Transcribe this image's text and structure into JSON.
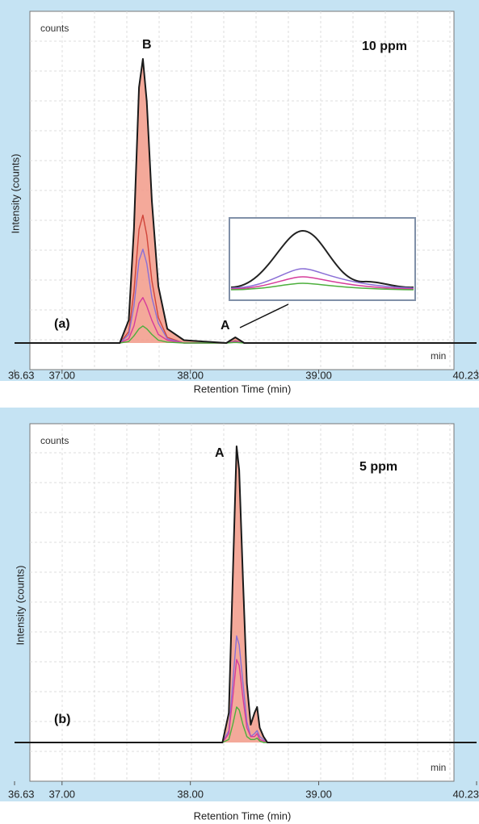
{
  "chart_data": [
    {
      "type": "line",
      "concentration": "10 ppm",
      "panel_label": "(a)",
      "y_unit": "counts",
      "x_unit": "min",
      "peak_labels": [
        "B",
        "A"
      ],
      "x_label": "Retention Time (min)",
      "y_label": "Intensity (counts)",
      "grid": true,
      "fill_color": "#f29a88",
      "xlim": [
        36.63,
        40.23
      ],
      "xticks": [
        36.63,
        {
          "value": 37,
          "label": "37.00"
        },
        {
          "value": 38,
          "label": "38.00"
        },
        {
          "value": 39,
          "label": "39.00"
        },
        40.23
      ],
      "ylim": [
        0,
        100
      ],
      "x": [
        36.63,
        37.45,
        37.52,
        37.56,
        37.6,
        37.63,
        37.66,
        37.7,
        37.75,
        37.82,
        37.95,
        38.28,
        38.35,
        38.42,
        40.23
      ],
      "series": [
        {
          "color": "#d0443a",
          "values": [
            0,
            0,
            4,
            18,
            40,
            45,
            38,
            22,
            9,
            2,
            0,
            0,
            0.8,
            0,
            0
          ]
        },
        {
          "color": "#8a6fd6",
          "values": [
            0,
            0,
            3,
            13,
            29,
            33,
            28,
            16,
            7,
            1.5,
            0,
            0,
            0.6,
            0,
            0
          ]
        },
        {
          "color": "#d63c9a",
          "values": [
            0,
            0,
            1.5,
            6,
            14,
            16,
            13,
            8,
            3,
            1,
            0,
            0,
            0.4,
            0,
            0
          ]
        },
        {
          "color": "#4caf3c",
          "values": [
            0,
            0,
            0.5,
            2.5,
            5,
            6,
            5,
            3,
            1,
            0.3,
            0,
            0,
            0.2,
            0,
            0
          ]
        },
        {
          "color": "#1a1a1a",
          "values": [
            0,
            0,
            8,
            40,
            90,
            100,
            85,
            50,
            20,
            5,
            1,
            0,
            2,
            0,
            0
          ]
        }
      ]
    },
    {
      "type": "line",
      "concentration": "5 ppm",
      "panel_label": "(b)",
      "y_unit": "counts",
      "x_unit": "min",
      "peak_labels": [
        "A"
      ],
      "x_label": "Retention Time (min)",
      "y_label": "Intensity (counts)",
      "grid": true,
      "fill_color": "#f29a88",
      "xlim": [
        36.63,
        40.23
      ],
      "xticks": [
        36.63,
        {
          "value": 37,
          "label": "37.00"
        },
        {
          "value": 38,
          "label": "38.00"
        },
        {
          "value": 39,
          "label": "39.00"
        },
        40.23
      ],
      "ylim": [
        0,
        100
      ],
      "x": [
        36.63,
        38.25,
        38.3,
        38.33,
        38.36,
        38.38,
        38.41,
        38.44,
        38.47,
        38.5,
        38.52,
        38.54,
        38.57,
        38.6,
        40.23
      ],
      "series": [
        {
          "color": "#8a6fd6",
          "values": [
            0,
            0,
            4,
            20,
            36,
            33,
            20,
            7,
            2,
            3,
            4,
            2,
            1,
            0,
            0
          ]
        },
        {
          "color": "#d63c9a",
          "values": [
            0,
            0,
            3,
            15,
            28,
            26,
            15,
            5,
            2,
            2,
            3,
            1,
            0.5,
            0,
            0
          ]
        },
        {
          "color": "#4caf3c",
          "values": [
            0,
            0,
            1,
            6,
            12,
            11,
            6,
            2,
            1,
            1,
            1.5,
            0.5,
            0,
            0,
            0
          ]
        },
        {
          "color": "#1a1a1a",
          "values": [
            0,
            0,
            10,
            55,
            100,
            92,
            55,
            20,
            6,
            10,
            12,
            5,
            2,
            0,
            0
          ]
        }
      ]
    }
  ]
}
